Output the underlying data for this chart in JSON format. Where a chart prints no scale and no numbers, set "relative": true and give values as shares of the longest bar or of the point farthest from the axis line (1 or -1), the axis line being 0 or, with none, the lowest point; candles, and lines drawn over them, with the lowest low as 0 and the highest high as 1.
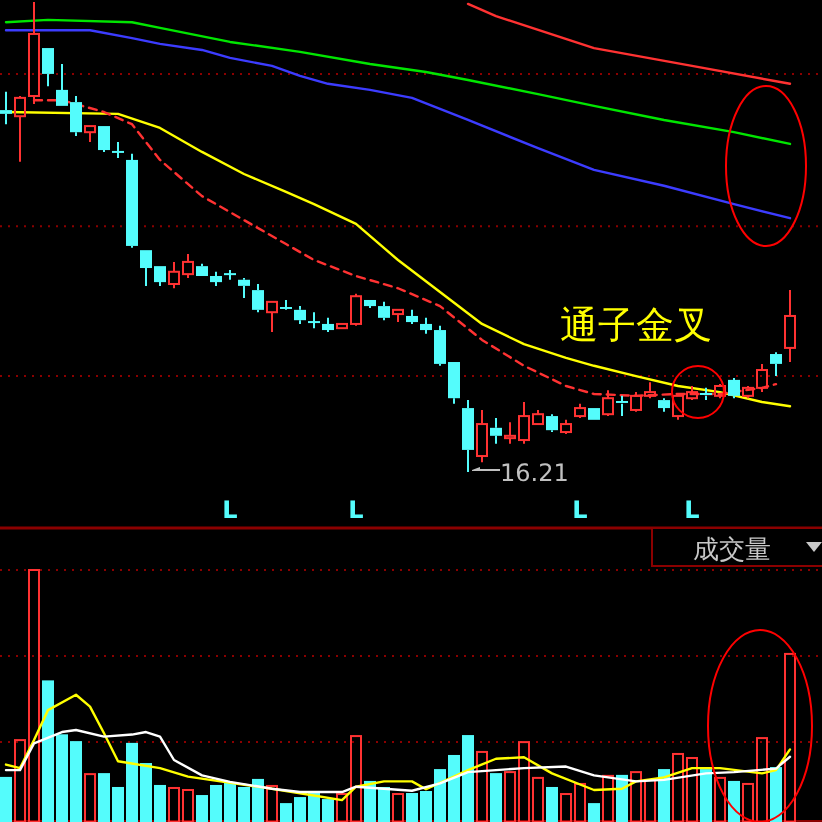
{
  "chart_data": [
    {
      "type": "candlestick",
      "relative": true,
      "ref_lines": [
        {
          "axis": "y",
          "value": 0.847,
          "color": "#8b0000",
          "line_style": "dotted"
        },
        {
          "axis": "y",
          "value": 0.523,
          "color": "#8b0000",
          "line_style": "dotted"
        },
        {
          "axis": "y",
          "value": 0.204,
          "color": "#8b0000",
          "line_style": "dotted"
        }
      ],
      "categories": [
        null,
        null,
        null,
        null,
        null,
        null,
        null,
        null,
        null,
        null,
        null,
        null,
        null,
        null,
        null,
        null,
        "L",
        null,
        null,
        null,
        null,
        null,
        null,
        null,
        null,
        "L",
        null,
        null,
        null,
        null,
        null,
        null,
        null,
        null,
        null,
        null,
        null,
        null,
        null,
        null,
        null,
        "L",
        null,
        null,
        null,
        null,
        null,
        null,
        null,
        "L",
        null,
        null,
        null,
        null,
        null,
        null,
        null
      ],
      "ohlc": [
        [
          0.77,
          0.809,
          0.74,
          0.762
        ],
        [
          0.757,
          0.8,
          0.66,
          0.796
        ],
        [
          0.8,
          1.0,
          0.783,
          0.932
        ],
        [
          0.902,
          0.902,
          0.821,
          0.847
        ],
        [
          0.813,
          0.868,
          0.779,
          0.779
        ],
        [
          0.787,
          0.8,
          0.715,
          0.723
        ],
        [
          0.723,
          0.736,
          0.702,
          0.736
        ],
        [
          0.736,
          0.736,
          0.681,
          0.685
        ],
        [
          0.681,
          0.702,
          0.668,
          0.681
        ],
        [
          0.664,
          0.677,
          0.477,
          0.481
        ],
        [
          0.472,
          0.472,
          0.396,
          0.434
        ],
        [
          0.438,
          0.438,
          0.396,
          0.404
        ],
        [
          0.4,
          0.447,
          0.391,
          0.426
        ],
        [
          0.421,
          0.464,
          0.413,
          0.447
        ],
        [
          0.438,
          0.443,
          0.417,
          0.417
        ],
        [
          0.417,
          0.426,
          0.396,
          0.404
        ],
        [
          0.421,
          0.43,
          0.409,
          0.421
        ],
        [
          0.409,
          0.413,
          0.37,
          0.396
        ],
        [
          0.387,
          0.4,
          0.34,
          0.345
        ],
        [
          0.34,
          0.362,
          0.298,
          0.362
        ],
        [
          0.349,
          0.366,
          0.345,
          0.349
        ],
        [
          0.345,
          0.353,
          0.315,
          0.323
        ],
        [
          0.319,
          0.34,
          0.306,
          0.319
        ],
        [
          0.315,
          0.328,
          0.298,
          0.302
        ],
        [
          0.306,
          0.315,
          0.306,
          0.315
        ],
        [
          0.315,
          0.379,
          0.311,
          0.374
        ],
        [
          0.366,
          0.366,
          0.349,
          0.353
        ],
        [
          0.353,
          0.362,
          0.323,
          0.328
        ],
        [
          0.336,
          0.345,
          0.319,
          0.345
        ],
        [
          0.332,
          0.345,
          0.315,
          0.319
        ],
        [
          0.315,
          0.328,
          0.294,
          0.302
        ],
        [
          0.302,
          0.311,
          0.226,
          0.23
        ],
        [
          0.234,
          0.234,
          0.145,
          0.157
        ],
        [
          0.136,
          0.153,
          0.0,
          0.047
        ],
        [
          0.034,
          0.132,
          0.021,
          0.102
        ],
        [
          0.094,
          0.115,
          0.06,
          0.077
        ],
        [
          0.072,
          0.106,
          0.06,
          0.077
        ],
        [
          0.068,
          0.149,
          0.06,
          0.119
        ],
        [
          0.102,
          0.132,
          0.102,
          0.123
        ],
        [
          0.119,
          0.123,
          0.085,
          0.089
        ],
        [
          0.085,
          0.111,
          0.081,
          0.102
        ],
        [
          0.119,
          0.145,
          0.115,
          0.136
        ],
        [
          0.136,
          0.136,
          0.111,
          0.111
        ],
        [
          0.123,
          0.174,
          0.119,
          0.157
        ],
        [
          0.149,
          0.162,
          0.119,
          0.145
        ],
        [
          0.132,
          0.17,
          0.128,
          0.162
        ],
        [
          0.162,
          0.191,
          0.157,
          0.17
        ],
        [
          0.153,
          0.157,
          0.128,
          0.136
        ],
        [
          0.119,
          0.162,
          0.111,
          0.162
        ],
        [
          0.157,
          0.183,
          0.153,
          0.17
        ],
        [
          0.166,
          0.179,
          0.153,
          0.162
        ],
        [
          0.162,
          0.187,
          0.157,
          0.183
        ],
        [
          0.196,
          0.2,
          0.157,
          0.162
        ],
        [
          0.162,
          0.183,
          0.157,
          0.179
        ],
        [
          0.179,
          0.23,
          0.17,
          0.217
        ],
        [
          0.251,
          0.255,
          0.204,
          0.23
        ],
        [
          0.264,
          0.387,
          0.234,
          0.332
        ]
      ],
      "colors": [
        "#54fcfc",
        "#ff3232",
        "#ff3232",
        "#54fcfc",
        "#54fcfc",
        "#54fcfc",
        "#ff3232",
        "#54fcfc",
        "#54fcfc",
        "#54fcfc",
        "#54fcfc",
        "#54fcfc",
        "#ff3232",
        "#ff3232",
        "#54fcfc",
        "#54fcfc",
        "#54fcfc",
        "#54fcfc",
        "#54fcfc",
        "#ff3232",
        "#54fcfc",
        "#54fcfc",
        "#54fcfc",
        "#54fcfc",
        "#ff3232",
        "#ff3232",
        "#54fcfc",
        "#54fcfc",
        "#ff3232",
        "#54fcfc",
        "#54fcfc",
        "#54fcfc",
        "#54fcfc",
        "#54fcfc",
        "#ff3232",
        "#54fcfc",
        "#ff3232",
        "#ff3232",
        "#ff3232",
        "#54fcfc",
        "#ff3232",
        "#ff3232",
        "#54fcfc",
        "#ff3232",
        "#54fcfc",
        "#ff3232",
        "#ff3232",
        "#54fcfc",
        "#ff3232",
        "#ff3232",
        "#54fcfc",
        "#ff3232",
        "#54fcfc",
        "#ff3232",
        "#ff3232",
        "#54fcfc",
        "#ff3232"
      ],
      "series": [
        {
          "type": "line",
          "color": "#ffff00",
          "line_style": "solid",
          "values": [
            0.766,
            null,
            null,
            null,
            null,
            null,
            null,
            null,
            0.762,
            null,
            null,
            0.732,
            null,
            null,
            0.681,
            null,
            null,
            0.634,
            null,
            null,
            0.596,
            null,
            0.57,
            null,
            null,
            0.528,
            null,
            null,
            0.451,
            null,
            null,
            0.383,
            null,
            null,
            0.315,
            null,
            null,
            0.272,
            null,
            null,
            0.243,
            null,
            0.226,
            null,
            null,
            0.204,
            null,
            null,
            0.183,
            null,
            null,
            0.17,
            null,
            null,
            0.149,
            null,
            0.14
          ]
        },
        {
          "type": "line",
          "color": "#ff3232",
          "line_style": "dashed",
          "values": [
            null,
            null,
            0.791,
            null,
            0.791,
            null,
            null,
            0.766,
            null,
            0.74,
            null,
            0.664,
            null,
            null,
            0.587,
            null,
            null,
            0.536,
            null,
            null,
            0.485,
            null,
            0.451,
            null,
            null,
            0.417,
            null,
            null,
            0.391,
            null,
            null,
            0.353,
            null,
            null,
            0.281,
            null,
            null,
            0.226,
            null,
            null,
            0.183,
            null,
            0.166,
            null,
            null,
            0.162,
            null,
            null,
            0.166,
            null,
            null,
            0.166,
            null,
            null,
            0.179,
            0.187,
            null
          ]
        },
        {
          "type": "line",
          "color": "#00e600",
          "line_style": "solid",
          "values": [
            0.957,
            null,
            null,
            0.962,
            null,
            null,
            null,
            null,
            null,
            0.957,
            null,
            0.945,
            null,
            null,
            null,
            null,
            0.915,
            null,
            null,
            null,
            null,
            0.894,
            null,
            null,
            null,
            null,
            0.868,
            null,
            null,
            null,
            0.851,
            null,
            null,
            0.834,
            null,
            null,
            null,
            null,
            0.804,
            null,
            null,
            null,
            0.779,
            null,
            null,
            null,
            null,
            0.749,
            null,
            null,
            null,
            null,
            0.723,
            null,
            null,
            null,
            0.698
          ]
        },
        {
          "type": "line",
          "color": "#3c3cff",
          "line_style": "solid",
          "values": [
            0.94,
            null,
            null,
            null,
            null,
            null,
            0.94,
            null,
            null,
            0.923,
            null,
            0.911,
            null,
            null,
            0.898,
            null,
            0.881,
            null,
            null,
            0.864,
            null,
            0.843,
            null,
            0.826,
            null,
            null,
            0.813,
            null,
            null,
            0.796,
            null,
            null,
            null,
            0.749,
            null,
            null,
            null,
            null,
            0.689,
            null,
            null,
            null,
            0.643,
            null,
            null,
            null,
            null,
            0.609,
            null,
            null,
            null,
            null,
            0.57,
            null,
            null,
            null,
            0.54
          ]
        },
        {
          "type": "line",
          "color": "#ff3232",
          "line_style": "solid",
          "values": [
            null,
            null,
            null,
            null,
            null,
            null,
            null,
            null,
            null,
            null,
            null,
            null,
            null,
            null,
            null,
            null,
            null,
            null,
            null,
            null,
            null,
            null,
            null,
            null,
            null,
            null,
            null,
            null,
            null,
            null,
            null,
            null,
            null,
            0.996,
            null,
            0.97,
            null,
            null,
            null,
            null,
            null,
            null,
            0.902,
            null,
            null,
            null,
            null,
            null,
            null,
            0.864,
            null,
            null,
            null,
            null,
            null,
            null,
            0.826
          ]
        }
      ],
      "annotations": [
        "16.21",
        "通子金叉"
      ]
    },
    {
      "type": "bar",
      "relative": true,
      "title": "成交量",
      "ref_lines": [
        {
          "axis": "y",
          "value": 1,
          "color": "#8b0000",
          "line_style": "dotted"
        },
        {
          "axis": "y",
          "value": 0.659,
          "color": "#8b0000",
          "line_style": "dotted"
        },
        {
          "axis": "y",
          "value": 0.317,
          "color": "#8b0000",
          "line_style": "dotted"
        }
      ],
      "categories": [
        null,
        null,
        null,
        null,
        null,
        null,
        null,
        null,
        null,
        null,
        null,
        null,
        null,
        null,
        null,
        null,
        null,
        null,
        null,
        null,
        null,
        null,
        null,
        null,
        null,
        null,
        null,
        null,
        null,
        null,
        null,
        null,
        null,
        null,
        null,
        null,
        null,
        null,
        null,
        null,
        null,
        null,
        null,
        null,
        null,
        null,
        null,
        null,
        null,
        null,
        null,
        null,
        null,
        null,
        null,
        null,
        null
      ],
      "values": [
        0.175,
        0.325,
        1,
        0.558,
        0.344,
        0.317,
        0.19,
        0.19,
        0.135,
        0.31,
        0.23,
        0.143,
        0.135,
        0.127,
        0.103,
        0.143,
        0.151,
        0.135,
        0.167,
        0.143,
        0.071,
        0.095,
        0.111,
        0.087,
        0.111,
        0.341,
        0.159,
        0.135,
        0.111,
        0.111,
        0.119,
        0.206,
        0.262,
        0.341,
        0.278,
        0.19,
        0.198,
        0.317,
        0.175,
        0.135,
        0.111,
        0.151,
        0.071,
        0.183,
        0.183,
        0.198,
        0.167,
        0.206,
        0.27,
        0.254,
        0.206,
        0.175,
        0.159,
        0.151,
        0.333,
        0.214,
        0.667
      ],
      "colors": [
        "#54fcfc",
        "#ff3232",
        "#ff3232",
        "#54fcfc",
        "#54fcfc",
        "#54fcfc",
        "#ff3232",
        "#54fcfc",
        "#54fcfc",
        "#54fcfc",
        "#54fcfc",
        "#54fcfc",
        "#ff3232",
        "#ff3232",
        "#54fcfc",
        "#54fcfc",
        "#54fcfc",
        "#54fcfc",
        "#54fcfc",
        "#ff3232",
        "#54fcfc",
        "#54fcfc",
        "#54fcfc",
        "#54fcfc",
        "#ff3232",
        "#ff3232",
        "#54fcfc",
        "#54fcfc",
        "#ff3232",
        "#54fcfc",
        "#54fcfc",
        "#54fcfc",
        "#54fcfc",
        "#54fcfc",
        "#ff3232",
        "#54fcfc",
        "#ff3232",
        "#ff3232",
        "#ff3232",
        "#54fcfc",
        "#ff3232",
        "#ff3232",
        "#54fcfc",
        "#ff3232",
        "#54fcfc",
        "#ff3232",
        "#ff3232",
        "#54fcfc",
        "#ff3232",
        "#ff3232",
        "#54fcfc",
        "#ff3232",
        "#54fcfc",
        "#ff3232",
        "#ff3232",
        "#54fcfc",
        "#ff3232"
      ],
      "series": [
        {
          "type": "line",
          "color": "#ffff00",
          "values": [
            0.228,
            0.214,
            0.325,
            0.444,
            null,
            0.505,
            0.458,
            0.352,
            0.241,
            null,
            null,
            0.214,
            null,
            0.18,
            null,
            null,
            null,
            null,
            null,
            0.132,
            null,
            0.114,
            null,
            null,
            0.087,
            0.14,
            null,
            0.161,
            null,
            0.161,
            0.13,
            null,
            null,
            0.206,
            null,
            0.251,
            null,
            0.257,
            null,
            0.193,
            null,
            null,
            0.127,
            null,
            0.132,
            0.161,
            null,
            0.177,
            null,
            0.214,
            null,
            0.214,
            null,
            null,
            0.193,
            0.206,
            0.288
          ]
        },
        {
          "type": "line",
          "color": "#ffffff",
          "values": [
            0.206,
            0.206,
            0.312,
            null,
            0.357,
            0.365,
            null,
            0.339,
            null,
            0.347,
            0.357,
            0.339,
            0.246,
            null,
            0.185,
            null,
            0.159,
            null,
            null,
            0.132,
            null,
            0.119,
            null,
            null,
            0.119,
            0.14,
            null,
            0.132,
            null,
            0.124,
            null,
            0.153,
            null,
            0.198,
            null,
            0.206,
            null,
            0.214,
            null,
            null,
            0.22,
            null,
            0.185,
            null,
            null,
            0.161,
            null,
            0.167,
            null,
            null,
            0.193,
            null,
            0.198,
            null,
            null,
            0.212,
            0.259
          ]
        }
      ]
    }
  ]
}
